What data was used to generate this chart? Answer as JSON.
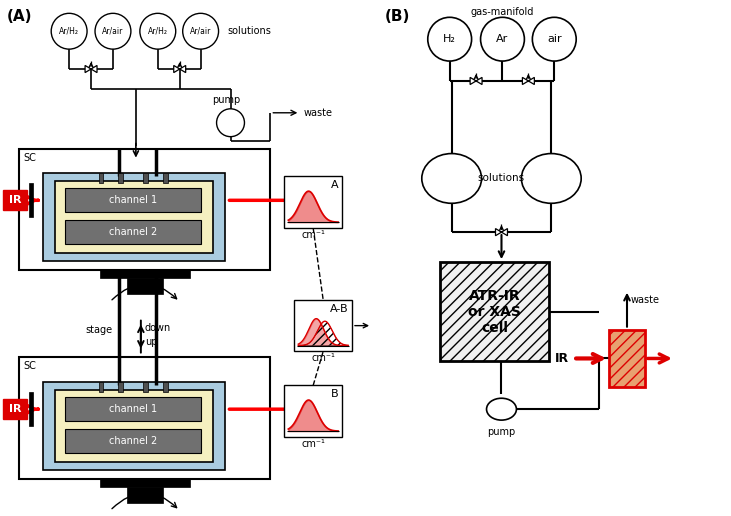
{
  "bg_color": "#ffffff",
  "panel_A_label": "(A)",
  "panel_B_label": "(B)",
  "gas_labels_A": [
    "Ar/H₂",
    "Ar/air",
    "Ar/H₂",
    "Ar/air"
  ],
  "solutions_label_A": "solutions",
  "gas_labels_B": [
    "H₂",
    "Ar",
    "air"
  ],
  "gas_manifold_label": "gas-manifold",
  "solutions_label": "solutions",
  "pump_label": "pump",
  "waste_label": "waste",
  "IR_label": "IR",
  "sc_label": "SC",
  "channel1_label": "channel 1",
  "channel2_label": "channel 2",
  "A_label": "A",
  "B_label": "B",
  "AB_label": "A-B",
  "cm_label": "cm⁻¹",
  "stage_label": "stage",
  "down_label": "down",
  "up_label": "up",
  "ATR_label": "ATR-IR\nor XAS\ncell",
  "red_color": "#dd0000",
  "light_blue": "#aacce0",
  "light_yellow": "#f5f0c0",
  "dark_gray": "#707070",
  "black": "#000000",
  "orange_fill": "#e8a070"
}
